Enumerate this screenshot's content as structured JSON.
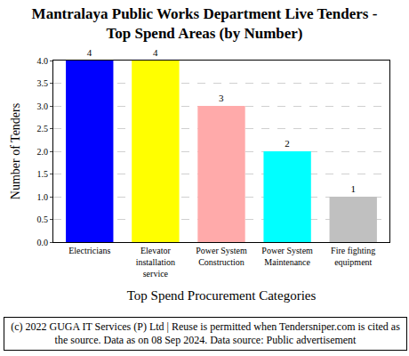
{
  "chart_data": {
    "type": "bar",
    "title": "Mantralaya Public Works Department Live Tenders - Top Spend Areas (by Number)",
    "x_label": "Top Spend Procurement Categories",
    "y_label": "Number of Tenders",
    "categories": [
      "Electricians",
      "Elevator installation service",
      "Power System Construction",
      "Power System Maintenance",
      "Fire fighting equipment"
    ],
    "values": [
      4,
      4,
      3,
      2,
      1
    ],
    "colors": [
      "#0000ff",
      "#ffff00",
      "#ffaaaa",
      "#00ffff",
      "#c0c0c0"
    ],
    "ylim": [
      0,
      4
    ],
    "yticks": [
      {
        "value": 0,
        "label": "0.0"
      },
      {
        "value": 0.5,
        "label": "0.5"
      },
      {
        "value": 1,
        "label": "1.0"
      },
      {
        "value": 1.5,
        "label": "1.5"
      },
      {
        "value": 2,
        "label": "2.0"
      },
      {
        "value": 2.5,
        "label": "2.5"
      },
      {
        "value": 3,
        "label": "3.0"
      },
      {
        "value": 3.5,
        "label": "3.5"
      },
      {
        "value": 4,
        "label": "4.0"
      }
    ],
    "grid": true,
    "data_labels": true,
    "annotations": [
      "(c) 2022 GUGA IT Services (P) Ltd | Reuse is permitted when Tendersniper.com is cited as the source. Data as on 08 Sep 2024. Data source: Public advertisement"
    ]
  }
}
